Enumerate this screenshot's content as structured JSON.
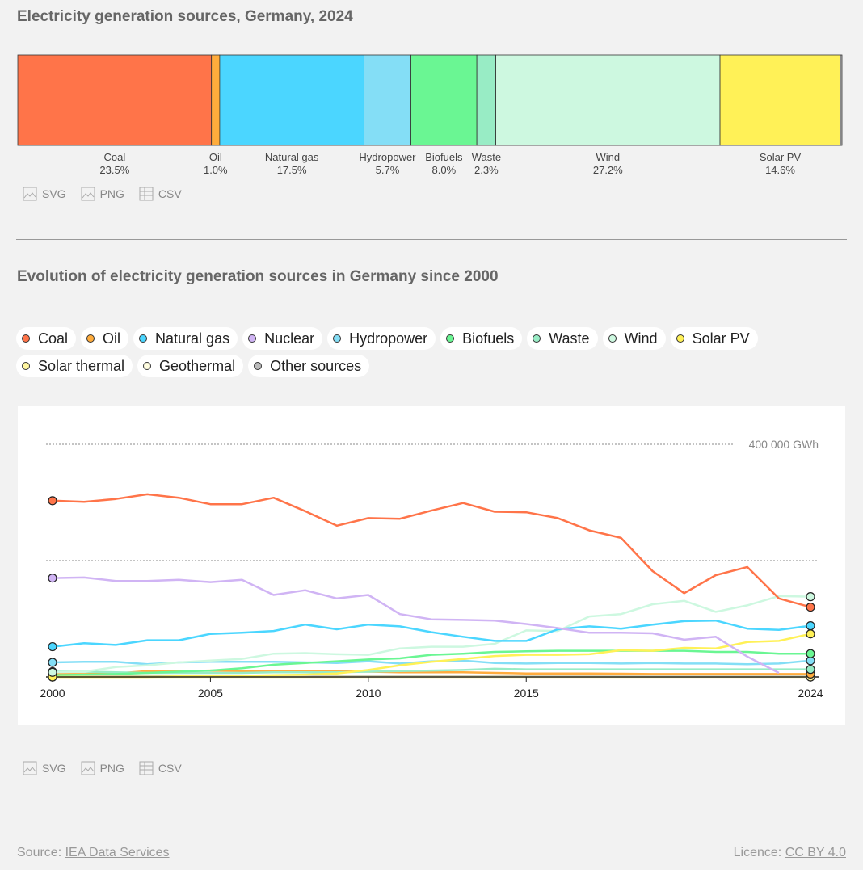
{
  "chart_data": [
    {
      "type": "bar",
      "title": "Electricity generation sources, Germany, 2024",
      "segments": [
        {
          "name": "Coal",
          "value": 23.5,
          "label": "23.5%",
          "color": "#ff7449"
        },
        {
          "name": "Oil",
          "value": 1.0,
          "label": "1.0%",
          "color": "#ffac3c"
        },
        {
          "name": "Natural gas",
          "value": 17.5,
          "label": "17.5%",
          "color": "#4bd6ff"
        },
        {
          "name": "Hydropower",
          "value": 5.7,
          "label": "5.7%",
          "color": "#84def6"
        },
        {
          "name": "Biofuels",
          "value": 8.0,
          "label": "8.0%",
          "color": "#6af693"
        },
        {
          "name": "Waste",
          "value": 2.3,
          "label": "2.3%",
          "color": "#98ecc5"
        },
        {
          "name": "Wind",
          "value": 27.2,
          "label": "27.2%",
          "color": "#cdf8e0"
        },
        {
          "name": "Solar PV",
          "value": 14.6,
          "label": "14.6%",
          "color": "#fff157"
        },
        {
          "name": "",
          "value": 0.2,
          "label": "",
          "color": "#bbbbbb"
        }
      ]
    },
    {
      "type": "line",
      "title": "Evolution of electricity generation sources in Germany since 2000",
      "x": [
        2000,
        2001,
        2002,
        2003,
        2004,
        2005,
        2006,
        2007,
        2008,
        2009,
        2010,
        2011,
        2012,
        2013,
        2014,
        2015,
        2016,
        2017,
        2018,
        2019,
        2020,
        2021,
        2022,
        2023,
        2024
      ],
      "xticks": [
        "2000",
        "2005",
        "2010",
        "2015",
        "2024"
      ],
      "ylim": [
        0,
        400000
      ],
      "ytick_label": "400 000 GWh",
      "grid": true,
      "legend": "top",
      "series": [
        {
          "name": "Other sources",
          "color": "#bbbbbb",
          "values": [
            2000,
            2000,
            2000,
            2000,
            2000,
            2000,
            2000,
            2000,
            2000,
            2000,
            2000,
            2000,
            2000,
            2000,
            2000,
            2000,
            2000,
            2000,
            2000,
            2000,
            2000,
            2000,
            2000,
            2000,
            2000
          ]
        },
        {
          "name": "Geothermal",
          "color": "#fffde0",
          "values": [
            0,
            0,
            0,
            0,
            0,
            0,
            0,
            0,
            0,
            0,
            0,
            0,
            0,
            0,
            0,
            100,
            200,
            200,
            200,
            200,
            200,
            200,
            200,
            200,
            200
          ]
        },
        {
          "name": "Solar thermal",
          "color": "#fff6a0",
          "values": [
            0,
            0,
            0,
            0,
            0,
            0,
            0,
            0,
            0,
            0,
            0,
            0,
            0,
            0,
            0,
            0,
            0,
            0,
            0,
            0,
            0,
            0,
            0,
            0,
            0
          ]
        },
        {
          "name": "Oil",
          "color": "#ffac3c",
          "values": [
            5000,
            5000,
            6000,
            10000,
            10000,
            11000,
            10000,
            10000,
            10000,
            10000,
            9000,
            8000,
            8000,
            8000,
            7000,
            6000,
            6000,
            6000,
            5500,
            5000,
            5000,
            5000,
            5000,
            5000,
            5000
          ]
        },
        {
          "name": "Waste",
          "color": "#98ecc5",
          "values": [
            9000,
            9000,
            8000,
            7000,
            7000,
            7000,
            7000,
            8000,
            8000,
            8000,
            9000,
            10000,
            11000,
            12000,
            14000,
            13000,
            13000,
            13000,
            13000,
            13000,
            13000,
            13000,
            13000,
            13000,
            13000
          ]
        },
        {
          "name": "Hydropower",
          "color": "#84def6",
          "values": [
            25000,
            26000,
            26000,
            22000,
            25000,
            26000,
            26000,
            26000,
            25000,
            24000,
            27000,
            23000,
            27000,
            28000,
            24000,
            23000,
            24000,
            24000,
            23000,
            24000,
            23000,
            23000,
            22000,
            23000,
            28000
          ]
        },
        {
          "name": "Biofuels",
          "color": "#6af693",
          "values": [
            3000,
            4000,
            5000,
            7000,
            9000,
            11000,
            15000,
            21000,
            24000,
            27000,
            30000,
            32000,
            38000,
            40000,
            43000,
            44000,
            45000,
            45000,
            45000,
            45000,
            45000,
            43000,
            43000,
            40000,
            40000
          ]
        },
        {
          "name": "Solar PV",
          "color": "#fff157",
          "values": [
            0,
            0,
            0,
            0,
            1000,
            1000,
            2000,
            3000,
            4000,
            6000,
            12000,
            20000,
            26000,
            31000,
            36000,
            38000,
            38000,
            39000,
            46000,
            45000,
            50000,
            49000,
            60000,
            62000,
            74000
          ]
        },
        {
          "name": "Wind",
          "color": "#cdf8e0",
          "values": [
            8000,
            9000,
            17000,
            20000,
            25000,
            28000,
            31000,
            40000,
            41000,
            39000,
            38000,
            49000,
            52000,
            52000,
            57000,
            80000,
            79000,
            104000,
            108000,
            125000,
            131000,
            112000,
            123000,
            139000,
            138000
          ]
        },
        {
          "name": "Natural gas",
          "color": "#4bd6ff",
          "values": [
            52000,
            58000,
            55000,
            63000,
            63000,
            74000,
            76000,
            79000,
            90000,
            82000,
            90000,
            87000,
            77000,
            69000,
            62000,
            62000,
            82000,
            87000,
            83000,
            90000,
            96000,
            97000,
            83000,
            81000,
            88000
          ]
        },
        {
          "name": "Nuclear",
          "color": "#d0b4f4",
          "values": [
            170000,
            171000,
            165000,
            165000,
            167000,
            163000,
            167000,
            141000,
            149000,
            135000,
            141000,
            108000,
            99000,
            98000,
            97000,
            91000,
            84000,
            76000,
            76000,
            75000,
            64000,
            69000,
            35000,
            7000,
            null
          ]
        },
        {
          "name": "Coal",
          "color": "#ff7449",
          "values": [
            303000,
            301000,
            306000,
            314000,
            308000,
            297000,
            297000,
            308000,
            285000,
            260000,
            273000,
            272000,
            286000,
            299000,
            284000,
            283000,
            273000,
            252000,
            239000,
            182000,
            144000,
            175000,
            189000,
            135000,
            120000
          ]
        }
      ]
    }
  ],
  "legend": [
    {
      "name": "Coal",
      "color": "#ff7449"
    },
    {
      "name": "Oil",
      "color": "#ffac3c"
    },
    {
      "name": "Natural gas",
      "color": "#4bd6ff"
    },
    {
      "name": "Nuclear",
      "color": "#d0b4f4"
    },
    {
      "name": "Hydropower",
      "color": "#84def6"
    },
    {
      "name": "Biofuels",
      "color": "#6af693"
    },
    {
      "name": "Waste",
      "color": "#98ecc5"
    },
    {
      "name": "Wind",
      "color": "#cdf8e0"
    },
    {
      "name": "Solar PV",
      "color": "#fff157"
    },
    {
      "name": "Solar thermal",
      "color": "#fff6a0"
    },
    {
      "name": "Geothermal",
      "color": "#fffde0"
    },
    {
      "name": "Other sources",
      "color": "#bbbbbb"
    }
  ],
  "downloads": {
    "svg": "SVG",
    "png": "PNG",
    "csv": "CSV"
  },
  "footer": {
    "source_label": "Source:",
    "source_link": "IEA Data Services",
    "licence_label": "Licence:",
    "licence_link": "CC BY 4.0"
  }
}
